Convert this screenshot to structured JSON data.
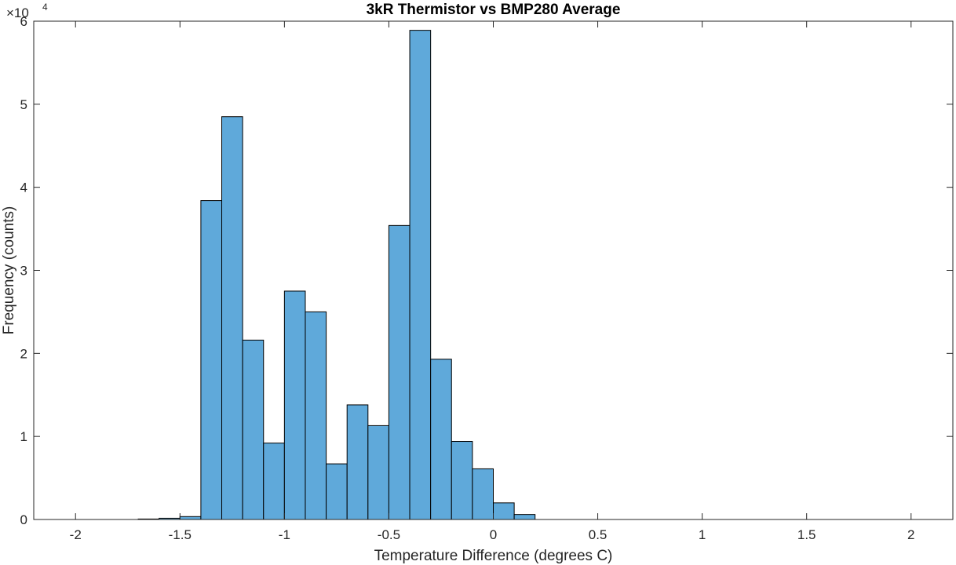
{
  "chart_data": {
    "type": "bar",
    "title": "3kR Thermistor vs BMP280 Average",
    "xlabel": "Temperature Difference (degrees C)",
    "ylabel": "Frequency (counts)",
    "xlim": [
      -2.2,
      2.2
    ],
    "ylim": [
      0,
      60000
    ],
    "xticks": [
      -2,
      -1.5,
      -1,
      -0.5,
      0,
      0.5,
      1,
      1.5,
      2
    ],
    "xtick_labels": [
      "-2",
      "-1.5",
      "-1",
      "-0.5",
      "0",
      "0.5",
      "1",
      "1.5",
      "2"
    ],
    "yticks": [
      0,
      10000,
      20000,
      30000,
      40000,
      50000,
      60000
    ],
    "ytick_labels": [
      "0",
      "1",
      "2",
      "3",
      "4",
      "5",
      "6"
    ],
    "y_exponent_base": "×10",
    "y_exponent_power": "4",
    "bin_width": 0.1,
    "bin_edges_start": -1.7,
    "bar_color": "#5fa9da",
    "values": [
      60,
      150,
      350,
      38400,
      48500,
      21600,
      9200,
      27500,
      25000,
      6700,
      13800,
      11300,
      35400,
      58900,
      19300,
      9400,
      6100,
      2000,
      600
    ],
    "grid": false
  }
}
